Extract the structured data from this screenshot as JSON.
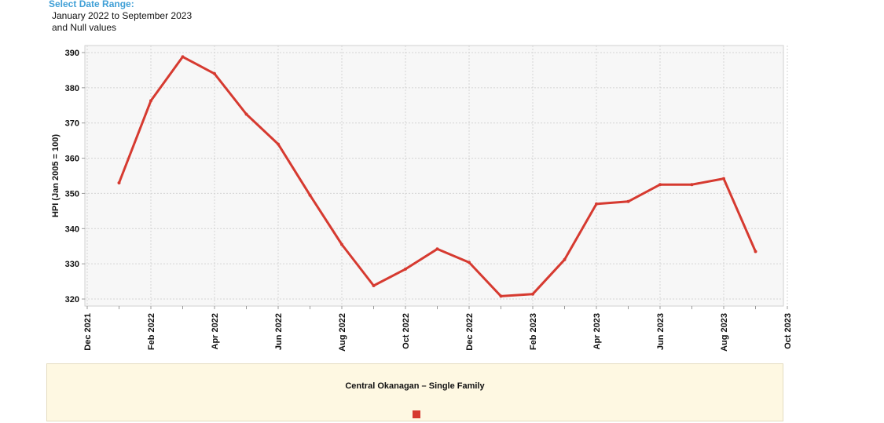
{
  "filter": {
    "heading": "Select Date Range:",
    "line1": "January 2022 to September 2023",
    "line2": "and Null values"
  },
  "chart_data": {
    "type": "line",
    "title": "",
    "xlabel": "",
    "ylabel": "HPI (Jan 2005 = 100)",
    "ylim": [
      318,
      392
    ],
    "yticks": [
      320,
      330,
      340,
      350,
      360,
      370,
      380,
      390
    ],
    "xtick_labels": [
      "Dec 2021",
      "Feb 2022",
      "Apr 2022",
      "Jun 2022",
      "Aug 2022",
      "Oct 2022",
      "Dec 2022",
      "Feb 2023",
      "Apr 2023",
      "Jun 2023",
      "Aug 2023",
      "Oct 2023"
    ],
    "grid": true,
    "legend_position": "bottom",
    "series": [
      {
        "name": "Central Okanagan – Single Family",
        "color": "#d63a30",
        "x": [
          "Jan 2022",
          "Feb 2022",
          "Mar 2022",
          "Apr 2022",
          "May 2022",
          "Jun 2022",
          "Jul 2022",
          "Aug 2022",
          "Sep 2022",
          "Oct 2022",
          "Nov 2022",
          "Dec 2022",
          "Jan 2023",
          "Feb 2023",
          "Mar 2023",
          "Apr 2023",
          "May 2023",
          "Jun 2023",
          "Jul 2023",
          "Aug 2023",
          "Sep 2023"
        ],
        "values": [
          353,
          376.3,
          388.8,
          384,
          372.5,
          364,
          349.5,
          335.5,
          323.8,
          328.5,
          334.2,
          330.4,
          320.8,
          321.4,
          331.2,
          347,
          347.7,
          352.5,
          352.5,
          354.2,
          333.5
        ]
      }
    ]
  }
}
